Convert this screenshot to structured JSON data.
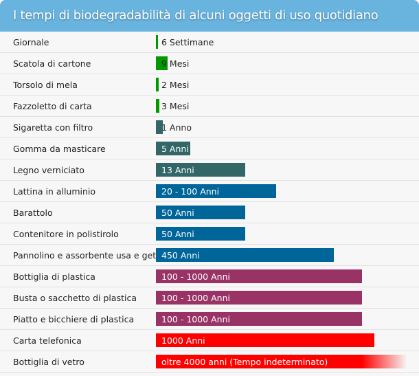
{
  "title": "I tempi di biodegradabilità di alcuni oggetti di uso quotidiano",
  "colors": {
    "header": "#69b3df",
    "green": "#009900",
    "teal": "#336666",
    "blue": "#006699",
    "purple": "#993366",
    "red": "#ff0000"
  },
  "items": [
    {
      "name": "Giornale",
      "value": "6 Settimane",
      "fill_pct": 0.8,
      "color": "#009900",
      "inside": false
    },
    {
      "name": "Scatola di cartone",
      "value": "9 Mesi",
      "fill_pct": 4.6,
      "color": "#009900",
      "inside": false
    },
    {
      "name": "Torsolo di mela",
      "value": "2 Mesi",
      "fill_pct": 1.1,
      "color": "#009900",
      "inside": false
    },
    {
      "name": "Fazzoletto di carta",
      "value": "3 Mesi",
      "fill_pct": 1.4,
      "color": "#009900",
      "inside": false
    },
    {
      "name": "Sigaretta con filtro",
      "value": "1 Anno",
      "fill_pct": 2.7,
      "color": "#336666",
      "inside": false
    },
    {
      "name": "Gomma da masticare",
      "value": "5 Anni",
      "fill_pct": 13.7,
      "color": "#336666",
      "inside": true
    },
    {
      "name": "Legno verniciato",
      "value": "13 Anni",
      "fill_pct": 35.5,
      "color": "#336666",
      "inside": true
    },
    {
      "name": "Lattina in alluminio",
      "value": "20 - 100 Anni",
      "fill_pct": 47.8,
      "color": "#006699",
      "inside": true
    },
    {
      "name": "Barattolo",
      "value": "50 Anni",
      "fill_pct": 35.5,
      "color": "#006699",
      "inside": true
    },
    {
      "name": "Contenitore in polistirolo",
      "value": "50 Anni",
      "fill_pct": 35.5,
      "color": "#006699",
      "inside": true
    },
    {
      "name": "Pannolino e assorbente usa e getta",
      "value": "450 Anni",
      "fill_pct": 70.8,
      "color": "#006699",
      "inside": true
    },
    {
      "name": "Bottiglia di plastica",
      "value": "100 - 1000 Anni",
      "fill_pct": 82,
      "color": "#993366",
      "inside": true
    },
    {
      "name": "Busta o sacchetto di plastica",
      "value": "100 - 1000 Anni",
      "fill_pct": 82,
      "color": "#993366",
      "inside": true
    },
    {
      "name": "Piatto e bicchiere di plastica",
      "value": "100 - 1000 Anni",
      "fill_pct": 82,
      "color": "#993366",
      "inside": true
    },
    {
      "name": "Carta telefonica",
      "value": "1000 Anni",
      "fill_pct": 86.9,
      "color": "#ff0000",
      "inside": true
    },
    {
      "name": "Bottiglia di vetro",
      "value": "oltre 4000 anni (Tempo indeterminato)",
      "fill_pct": 100,
      "color": "#ff0000",
      "inside": true,
      "fade": true
    }
  ]
}
